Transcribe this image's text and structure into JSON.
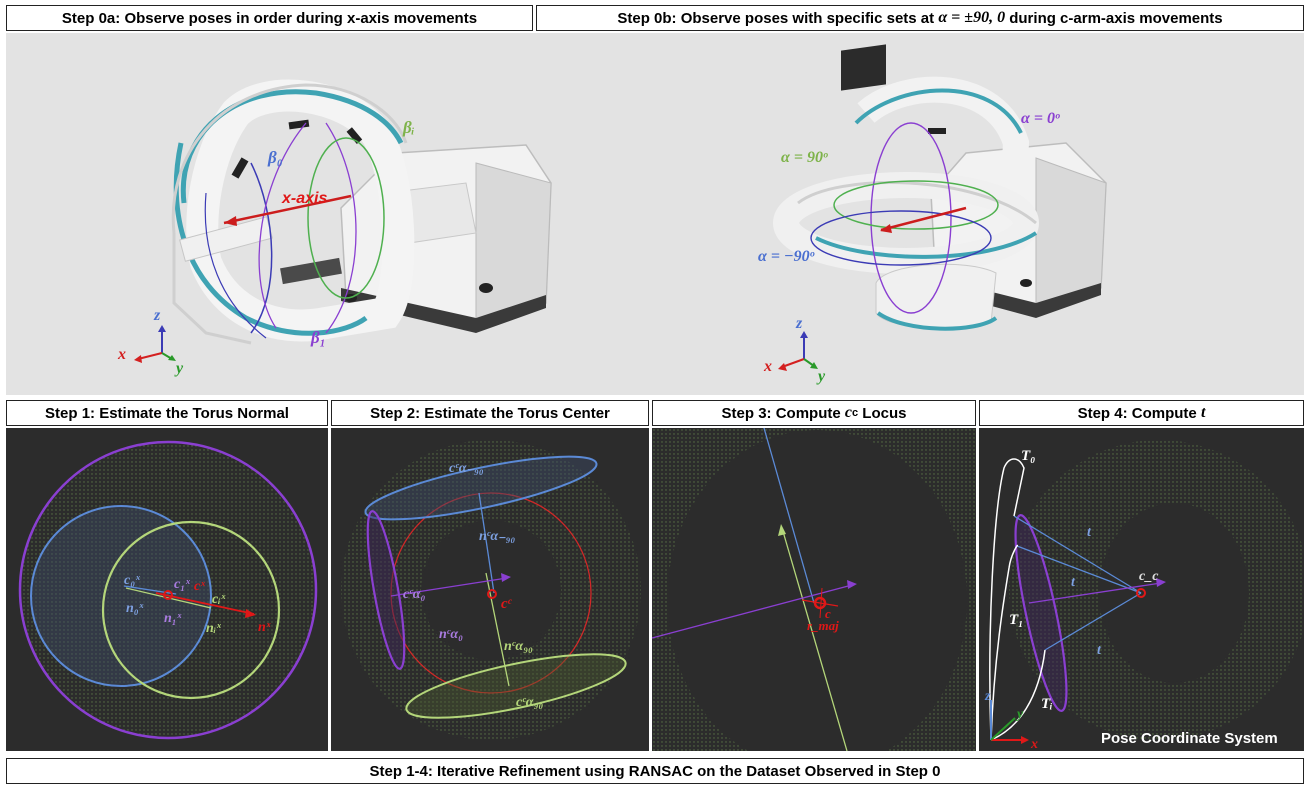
{
  "headers": {
    "step0a": "Step 0a: Observe poses in order during x-axis movements",
    "step0b_pre": "Step 0b: Observe poses with specific sets at ",
    "step0b_math": "α = ±90, 0",
    "step0b_post": " during c-arm-axis movements",
    "step1": "Step 1: Estimate the Torus Normal",
    "step2": "Step 2: Estimate the Torus Center",
    "step3_pre": "Step 3: Compute ",
    "step3_math": "c",
    "step3_sub": "c",
    "step3_post": " Locus",
    "step4_pre": "Step 4: Compute ",
    "step4_math": "t",
    "footer": "Step 1-4: Iterative Refinement using RANSAC on the Dataset Observed in Step 0"
  },
  "step0a": {
    "beta0": "β₀",
    "beta1": "β₁",
    "betai": "βᵢ",
    "xaxis": "x-axis",
    "ax_z": "z",
    "ax_x": "x",
    "ax_y": "y"
  },
  "step0b": {
    "alpha0": "α = 0ᵒ",
    "alpha90": "α = 90ᵒ",
    "alpham90": "α = −90ᵒ",
    "ax_z": "z",
    "ax_x": "x",
    "ax_y": "y"
  },
  "step1": {
    "c0": "c₀ˣ",
    "ci1": "c₁ˣ",
    "cx": "cˣ",
    "ci": "cᵢˣ",
    "n0": "n₀ˣ",
    "n1": "n₁ˣ",
    "ni": "nᵢˣ",
    "nx": "nˣ"
  },
  "step2": {
    "cam90": "cᶜα₋₉₀",
    "nam90": "nᶜα₋₉₀",
    "ca0": "cᶜα₀",
    "na0": "nᶜα₀",
    "cc": "cᶜ",
    "na90": "nᶜα₉₀",
    "ca90": "cᶜα₉₀"
  },
  "step3": {
    "cc": "c",
    "rmaj": "r_maj"
  },
  "step4": {
    "T0": "T₀",
    "T1": "T₁",
    "Ti": "Tᵢ",
    "t": "t",
    "cc": "c_c",
    "ax_z": "z",
    "ax_y": "y",
    "ax_x": "x",
    "pose_label": "Pose Coordinate System"
  },
  "colors": {
    "blue": "#5b8ad6",
    "purple": "#8a3fd1",
    "green": "#8ac24a",
    "red": "#e01818",
    "dark": "#2c2c2c",
    "torus": "#7fae5a"
  }
}
